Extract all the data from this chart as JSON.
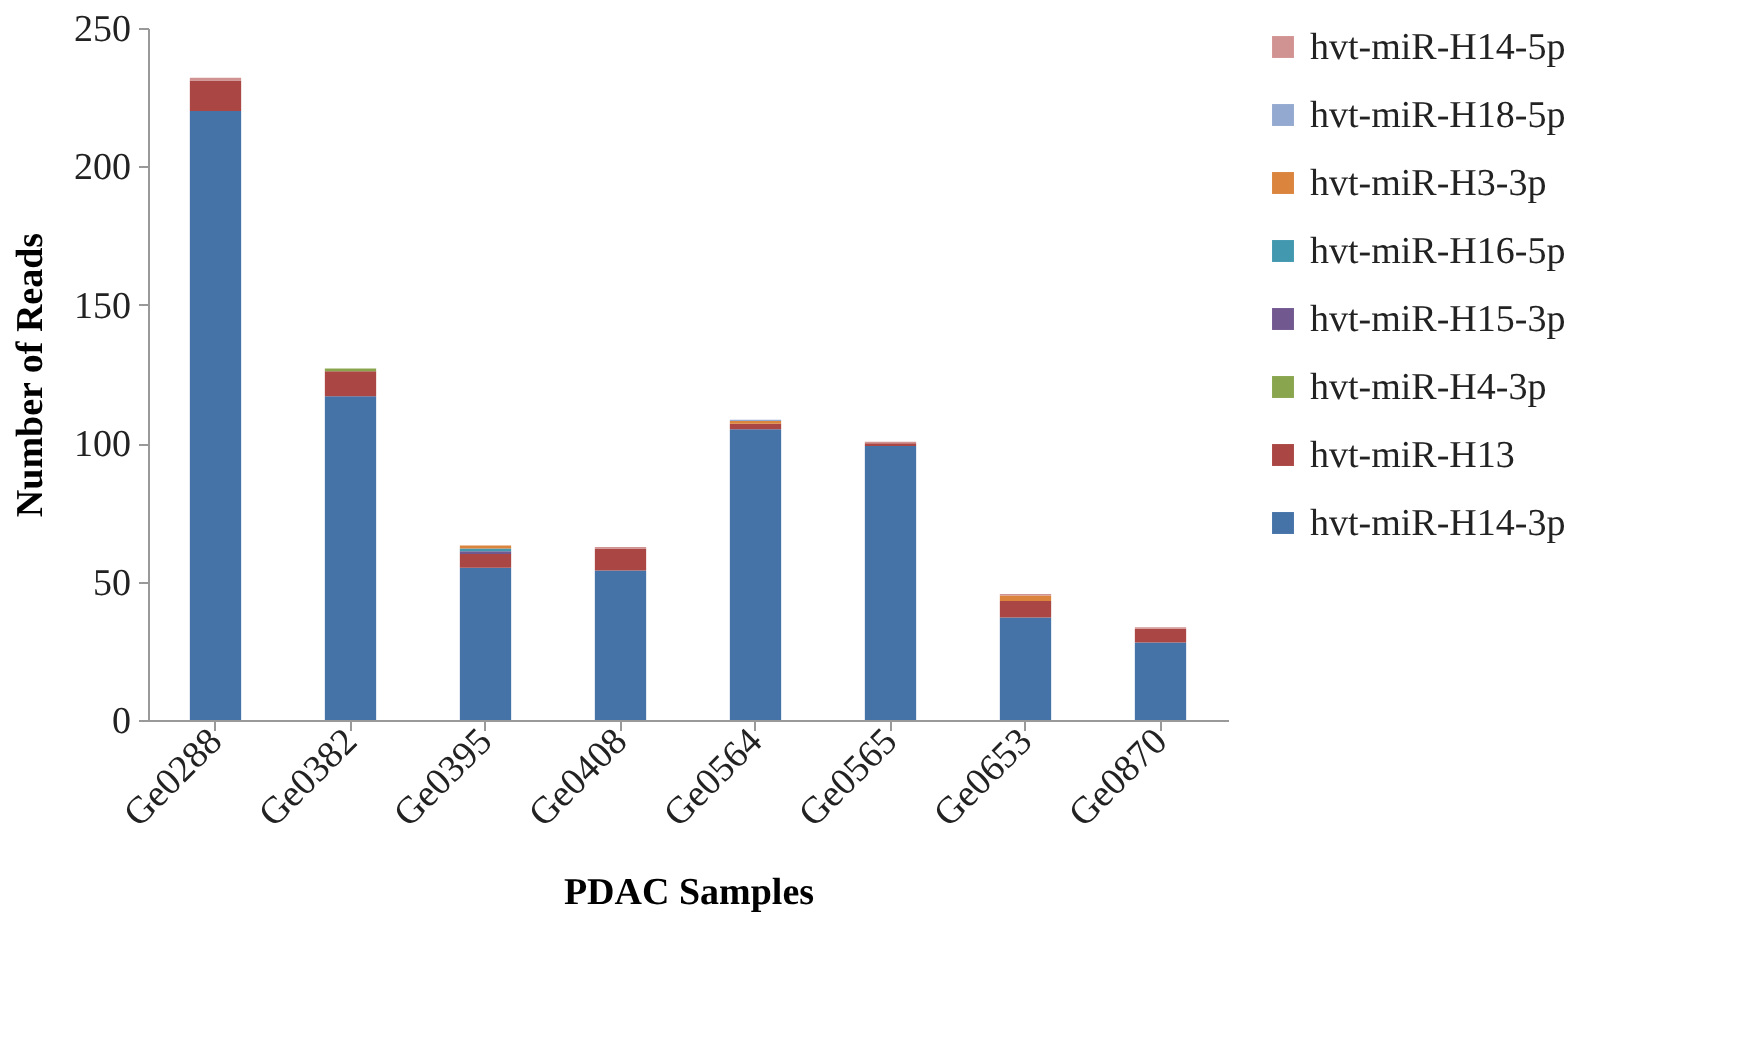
{
  "chart_data": {
    "type": "bar",
    "stacked": true,
    "xlabel": "PDAC Samples",
    "ylabel": "Number of Reads",
    "categories": [
      "Ge0288",
      "Ge0382",
      "Ge0395",
      "Ge0408",
      "Ge0564",
      "Ge0565",
      "Ge0653",
      "Ge0870"
    ],
    "ylim": [
      0,
      250
    ],
    "yticks": [
      0,
      50,
      100,
      150,
      200,
      250
    ],
    "grid": false,
    "legend": "right",
    "series": [
      {
        "name": "hvt-miR-H14-3p",
        "color": "#4572a7",
        "values": [
          220,
          117,
          55,
          54,
          105,
          99,
          37,
          28
        ]
      },
      {
        "name": "hvt-miR-H13",
        "color": "#aa4643",
        "values": [
          11,
          9,
          5,
          8,
          2,
          1,
          6,
          5
        ]
      },
      {
        "name": "hvt-miR-H4-3p",
        "color": "#89a54e",
        "values": [
          null,
          1,
          null,
          null,
          null,
          null,
          null,
          null
        ]
      },
      {
        "name": "hvt-miR-H15-3p",
        "color": "#71588f",
        "values": [
          null,
          null,
          1,
          null,
          null,
          null,
          null,
          null
        ]
      },
      {
        "name": "hvt-miR-H16-5p",
        "color": "#4198af",
        "values": [
          null,
          null,
          1,
          null,
          null,
          null,
          null,
          null
        ]
      },
      {
        "name": "hvt-miR-H3-3p",
        "color": "#db843d",
        "values": [
          null,
          null,
          1,
          null,
          1,
          null,
          2,
          null
        ]
      },
      {
        "name": "hvt-miR-H18-5p",
        "color": "#93a9cf",
        "values": [
          null,
          null,
          null,
          null,
          0.5,
          null,
          null,
          null
        ]
      },
      {
        "name": "hvt-miR-H14-5p",
        "color": "#d19392",
        "values": [
          1,
          null,
          null,
          0.5,
          null,
          0.5,
          0.5,
          0.5
        ]
      }
    ]
  }
}
